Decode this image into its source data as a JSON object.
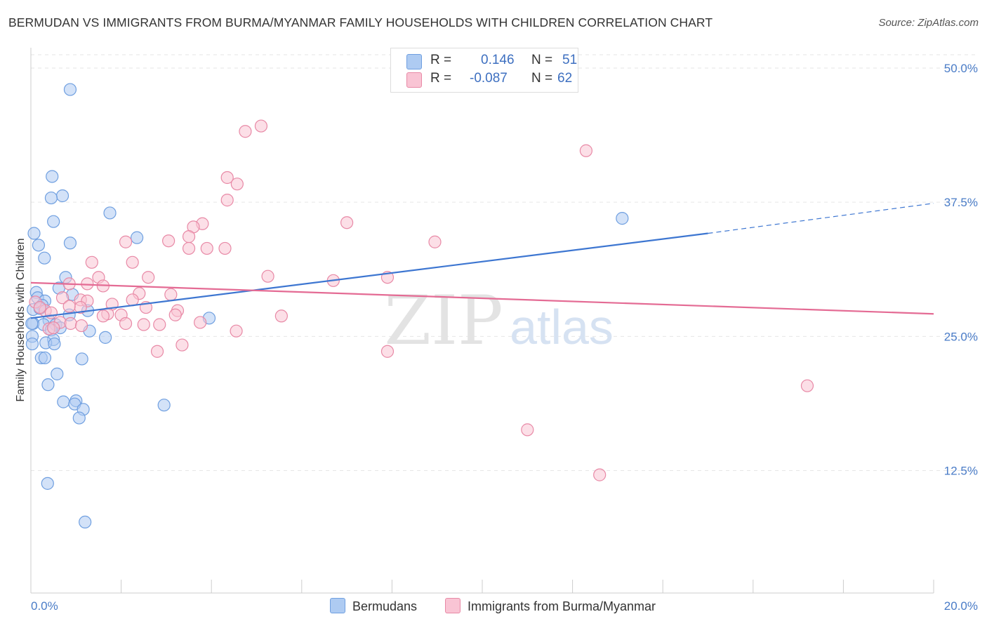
{
  "title": "BERMUDAN VS IMMIGRANTS FROM BURMA/MYANMAR FAMILY HOUSEHOLDS WITH CHILDREN CORRELATION CHART",
  "source": "Source: ZipAtlas.com",
  "watermark": {
    "zip": "ZIP",
    "atlas": "atlas"
  },
  "legend": {
    "rows": [
      {
        "r_label": "R =",
        "r_value": "0.146",
        "n_label": "N =",
        "n_value": "51",
        "color": "#aecbf2",
        "border": "#6f9fe0"
      },
      {
        "r_label": "R =",
        "r_value": "-0.087",
        "n_label": "N =",
        "n_value": "62",
        "color": "#f9c4d4",
        "border": "#e889a6"
      }
    ]
  },
  "bottom_legend": [
    {
      "label": "Bermudans",
      "color": "#aecbf2",
      "border": "#6f9fe0"
    },
    {
      "label": "Immigrants from Burma/Myanmar",
      "color": "#f9c4d4",
      "border": "#e889a6"
    }
  ],
  "chart_data": {
    "type": "scatter",
    "title": "BERMUDAN VS IMMIGRANTS FROM BURMA/MYANMAR FAMILY HOUSEHOLDS WITH CHILDREN CORRELATION CHART",
    "xlabel": "",
    "ylabel": "Family Households with Children",
    "xlim": [
      0,
      20
    ],
    "ylim": [
      0,
      52
    ],
    "x_tick_labels": [
      "0.0%",
      "20.0%"
    ],
    "y_ticks": [
      12.5,
      25.0,
      37.5,
      50.0
    ],
    "y_tick_labels": [
      "12.5%",
      "25.0%",
      "37.5%",
      "50.0%"
    ],
    "grid": true,
    "legend_position": "top-center",
    "series": [
      {
        "name": "Bermudans",
        "color": "#6f9fe0",
        "fill": "#aecbf2",
        "trend_color": "#3d76d1",
        "trend": {
          "x0": 0.0,
          "y0": 26.7,
          "x1": 15.0,
          "y1": 34.6,
          "dash_to": 20.0,
          "dash_y": 37.4
        },
        "points": [
          [
            0.87,
            48.0
          ],
          [
            0.07,
            34.6
          ],
          [
            0.47,
            39.9
          ],
          [
            0.7,
            38.1
          ],
          [
            0.45,
            37.9
          ],
          [
            1.75,
            36.5
          ],
          [
            0.5,
            35.7
          ],
          [
            0.17,
            33.5
          ],
          [
            0.87,
            33.7
          ],
          [
            2.35,
            34.2
          ],
          [
            0.3,
            32.3
          ],
          [
            0.77,
            30.5
          ],
          [
            0.62,
            29.5
          ],
          [
            0.12,
            29.1
          ],
          [
            0.92,
            28.9
          ],
          [
            0.15,
            28.6
          ],
          [
            0.31,
            28.3
          ],
          [
            0.25,
            27.9
          ],
          [
            0.05,
            27.5
          ],
          [
            0.2,
            27.6
          ],
          [
            1.26,
            27.4
          ],
          [
            0.85,
            27.0
          ],
          [
            0.4,
            26.5
          ],
          [
            0.05,
            26.2
          ],
          [
            0.28,
            26.1
          ],
          [
            0.55,
            26.1
          ],
          [
            0.65,
            25.8
          ],
          [
            0.45,
            25.6
          ],
          [
            1.3,
            25.5
          ],
          [
            0.03,
            25.0
          ],
          [
            1.65,
            24.9
          ],
          [
            0.5,
            24.7
          ],
          [
            0.33,
            24.4
          ],
          [
            0.52,
            24.3
          ],
          [
            0.03,
            24.3
          ],
          [
            0.23,
            23.0
          ],
          [
            0.31,
            23.0
          ],
          [
            1.13,
            22.9
          ],
          [
            0.58,
            21.5
          ],
          [
            0.38,
            20.5
          ],
          [
            0.72,
            18.9
          ],
          [
            1.0,
            19.0
          ],
          [
            0.97,
            18.7
          ],
          [
            1.16,
            18.2
          ],
          [
            1.07,
            17.4
          ],
          [
            2.95,
            18.6
          ],
          [
            3.95,
            26.7
          ],
          [
            13.1,
            36.0
          ],
          [
            0.37,
            11.3
          ],
          [
            1.2,
            7.7
          ],
          [
            0.02,
            26.2
          ]
        ]
      },
      {
        "name": "Immigrants from Burma/Myanmar",
        "color": "#e889a6",
        "fill": "#f9c4d4",
        "trend_color": "#e46b94",
        "trend": {
          "x0": 0.0,
          "y0": 30.0,
          "x1": 20.0,
          "y1": 27.1
        },
        "points": [
          [
            4.75,
            44.1
          ],
          [
            5.1,
            44.6
          ],
          [
            12.3,
            42.3
          ],
          [
            4.35,
            39.8
          ],
          [
            4.57,
            39.2
          ],
          [
            4.35,
            37.7
          ],
          [
            3.8,
            35.5
          ],
          [
            3.6,
            35.2
          ],
          [
            7.0,
            35.6
          ],
          [
            3.5,
            34.3
          ],
          [
            2.1,
            33.8
          ],
          [
            3.05,
            33.9
          ],
          [
            8.95,
            33.8
          ],
          [
            3.5,
            33.2
          ],
          [
            3.9,
            33.2
          ],
          [
            4.3,
            33.2
          ],
          [
            1.35,
            31.9
          ],
          [
            2.25,
            31.9
          ],
          [
            1.5,
            30.5
          ],
          [
            2.6,
            30.5
          ],
          [
            5.25,
            30.6
          ],
          [
            6.7,
            30.2
          ],
          [
            7.9,
            30.5
          ],
          [
            1.25,
            29.9
          ],
          [
            1.6,
            29.7
          ],
          [
            0.85,
            29.9
          ],
          [
            2.4,
            29.0
          ],
          [
            3.1,
            28.9
          ],
          [
            0.7,
            28.6
          ],
          [
            1.1,
            28.4
          ],
          [
            1.25,
            28.3
          ],
          [
            2.25,
            28.4
          ],
          [
            1.8,
            28.0
          ],
          [
            0.1,
            28.2
          ],
          [
            0.32,
            27.4
          ],
          [
            0.45,
            27.2
          ],
          [
            1.1,
            27.7
          ],
          [
            2.55,
            27.7
          ],
          [
            3.25,
            27.4
          ],
          [
            1.7,
            27.1
          ],
          [
            2.0,
            27.0
          ],
          [
            1.6,
            26.9
          ],
          [
            2.1,
            26.2
          ],
          [
            3.2,
            27.0
          ],
          [
            5.55,
            26.9
          ],
          [
            0.65,
            26.3
          ],
          [
            0.88,
            26.2
          ],
          [
            1.12,
            26.0
          ],
          [
            2.5,
            26.1
          ],
          [
            2.85,
            26.1
          ],
          [
            3.75,
            26.3
          ],
          [
            4.55,
            25.5
          ],
          [
            0.4,
            25.7
          ],
          [
            0.5,
            25.8
          ],
          [
            3.35,
            24.2
          ],
          [
            2.8,
            23.6
          ],
          [
            7.9,
            23.6
          ],
          [
            17.2,
            20.4
          ],
          [
            11.0,
            16.3
          ],
          [
            12.6,
            12.1
          ],
          [
            0.2,
            27.7
          ],
          [
            0.85,
            27.8
          ]
        ]
      }
    ]
  }
}
